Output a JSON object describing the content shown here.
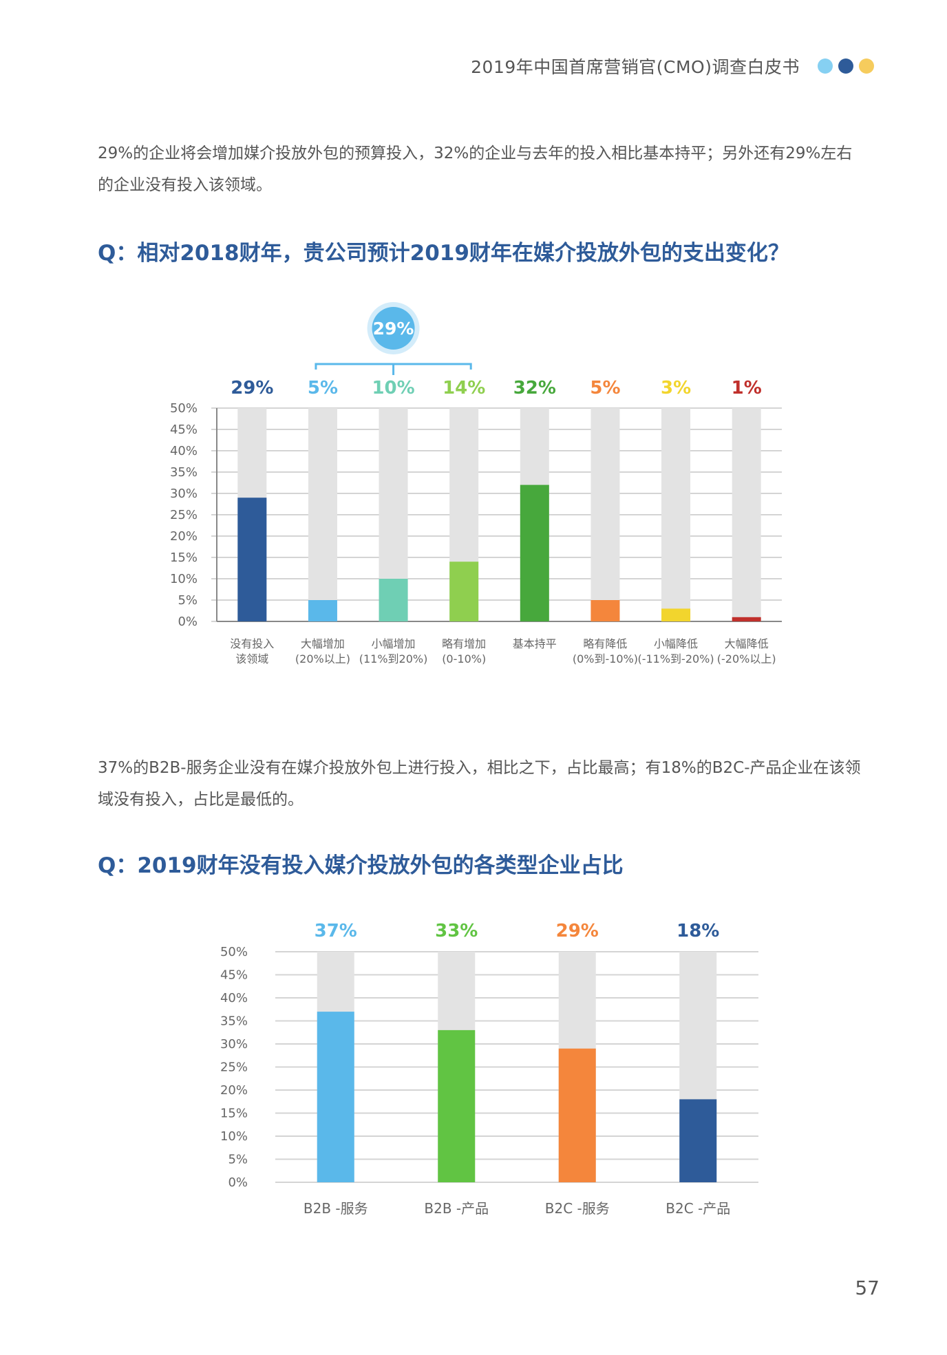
{
  "header": {
    "title": "2019年中国首席营销官(CMO)调查白皮书",
    "dot_colors": [
      "#86d0f2",
      "#2e5b99",
      "#f6cc5d"
    ]
  },
  "paragraph1": {
    "line1": "29%的企业将会增加媒介投放外包的预算投入，32%的企业与去年的投入相比基本持平；另外还有29%左右",
    "line2": "的企业没有投入该领域。"
  },
  "question1": "Q：相对2018财年，贵公司预计2019财年在媒介投放外包的支出变化？",
  "paragraph2": {
    "line1": "37%的B2B-服务企业没有在媒介投放外包上进行投入，相比之下，占比最高；有18%的B2C-产品企业在该领",
    "line2": "域没有投入，占比是最低的。"
  },
  "question2": "Q：2019财年没有投入媒介投放外包的各类型企业占比",
  "page_number": "57",
  "chart_data": [
    {
      "type": "bar",
      "title": "",
      "ylim": [
        0,
        50
      ],
      "yticks": [
        "0%",
        "5%",
        "10%",
        "15%",
        "20%",
        "25%",
        "30%",
        "35%",
        "40%",
        "45%",
        "50%"
      ],
      "grid": true,
      "background_bar_color": "#e3e3e3",
      "categories": [
        [
          "没有投入",
          "该领域"
        ],
        [
          "大幅增加",
          "(20%以上)"
        ],
        [
          "小幅增加",
          "(11%到20%)"
        ],
        [
          "略有增加",
          "(0-10%)"
        ],
        [
          "基本持平",
          ""
        ],
        [
          "略有降低",
          "(0%到-10%)"
        ],
        [
          "小幅降低",
          "(-11%到-20%)"
        ],
        [
          "大幅降低",
          "(-20%以上)"
        ]
      ],
      "values": [
        29,
        5,
        10,
        14,
        32,
        5,
        3,
        1
      ],
      "value_labels": [
        "29%",
        "5%",
        "10%",
        "14%",
        "32%",
        "5%",
        "3%",
        "1%"
      ],
      "colors": [
        "#2e5b99",
        "#5ab8ea",
        "#6fcfb4",
        "#8fcf4f",
        "#47a83c",
        "#f4863c",
        "#f2d52d",
        "#c0302c"
      ],
      "label_colors": [
        "#2e5b99",
        "#5ab8ea",
        "#6fcfb4",
        "#8fcf4f",
        "#47a83c",
        "#f4863c",
        "#f2d52d",
        "#c0302c"
      ],
      "bracket": {
        "label": "29%",
        "covers": [
          1,
          2,
          3
        ],
        "color": "#5ab8ea"
      }
    },
    {
      "type": "bar",
      "title": "",
      "ylim": [
        0,
        50
      ],
      "yticks": [
        "0%",
        "5%",
        "10%",
        "15%",
        "20%",
        "25%",
        "30%",
        "35%",
        "40%",
        "45%",
        "50%"
      ],
      "grid": true,
      "background_bar_color": "#e3e3e3",
      "categories": [
        [
          "B2B -服务"
        ],
        [
          "B2B -产品"
        ],
        [
          "B2C -服务"
        ],
        [
          "B2C -产品"
        ]
      ],
      "values": [
        37,
        33,
        29,
        18
      ],
      "value_labels": [
        "37%",
        "33%",
        "29%",
        "18%"
      ],
      "colors": [
        "#5ab8ea",
        "#61c443",
        "#f4863c",
        "#2e5b99"
      ],
      "label_colors": [
        "#5ab8ea",
        "#61c443",
        "#f4863c",
        "#2e5b99"
      ]
    }
  ]
}
